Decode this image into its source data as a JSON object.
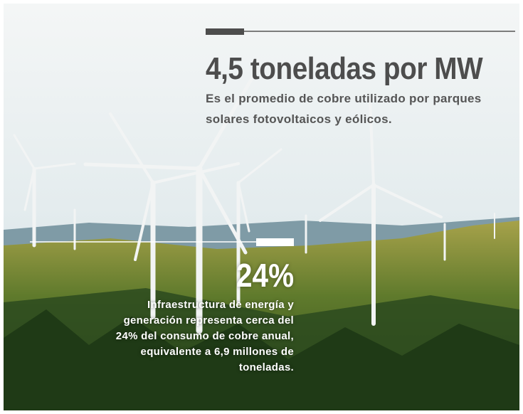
{
  "top_stat": {
    "value": "4,5 toneladas por MW",
    "description_lines": [
      "Es el promedio de cobre utilizado por parques",
      "solares fotovoltaicos y eólicos."
    ]
  },
  "bottom_stat": {
    "value": "24%",
    "description_lines": [
      "Infraestructura de energía y",
      "generación representa cerca del",
      "24% del consumo de cobre anual,",
      "equivalente a 6,9 millones de",
      "toneladas."
    ]
  }
}
